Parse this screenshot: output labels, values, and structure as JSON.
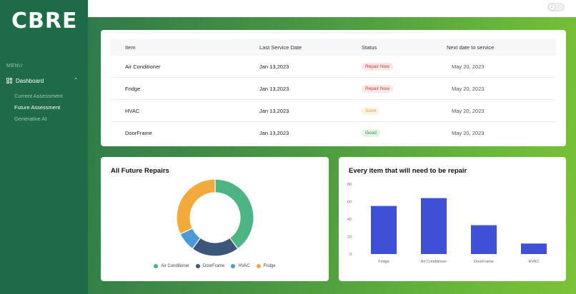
{
  "app": {
    "logo": "CBRE"
  },
  "sidebar": {
    "menu_label": "MENU",
    "dashboard_label": "Dashboard",
    "items": [
      {
        "label": "Current Assessment",
        "active": false
      },
      {
        "label": "Future Assessment",
        "active": true
      },
      {
        "label": "Generative AI",
        "active": false
      }
    ]
  },
  "table": {
    "headers": [
      "Item",
      "Last Service Date",
      "Status",
      "Next date to service"
    ],
    "rows": [
      {
        "item": "Air Conditioner",
        "last": "Jan 13,2023",
        "status": "Repair Now",
        "status_type": "repair",
        "next": "May 20, 2023"
      },
      {
        "item": "Fridge",
        "last": "Jan 13,2023",
        "status": "Repair Now",
        "status_type": "repair",
        "next": "May 20, 2023"
      },
      {
        "item": "HVAC",
        "last": "Jan 13,2023",
        "status": "Soon",
        "status_type": "soon",
        "next": "May 20, 2023"
      },
      {
        "item": "DoorFrame",
        "last": "Jan 13,2023",
        "status": "Good",
        "status_type": "good",
        "next": "May 20, 2023"
      }
    ]
  },
  "donut": {
    "title": "All Future Repairs",
    "legend": [
      "Air Conditioner",
      "DoorFrame",
      "HVAC",
      "Fridge"
    ]
  },
  "bar": {
    "title": "Every item that will need to be repair"
  },
  "chart_data": [
    {
      "type": "pie",
      "title": "All Future Repairs",
      "categories": [
        "Air Conditioner",
        "DoorFrame",
        "HVAC",
        "Fridge"
      ],
      "values": [
        40,
        20,
        8,
        32
      ],
      "colors": [
        "#4cb581",
        "#3b5678",
        "#4a9ad9",
        "#f2aa3c"
      ],
      "legend": "bottom"
    },
    {
      "type": "bar",
      "title": "Every item that will need to be repair",
      "categories": [
        "Fridge",
        "Air Conditioner",
        "DoorFrame",
        "HVAC"
      ],
      "values": [
        55,
        64,
        33,
        12
      ],
      "ylim": [
        0,
        80
      ],
      "yticks": [
        0,
        20,
        40,
        60,
        80
      ],
      "color": "#3f4fd6",
      "grid": false
    }
  ],
  "colors": {
    "sidebar": "#1f6b47",
    "accent": "#3f4fd6"
  }
}
